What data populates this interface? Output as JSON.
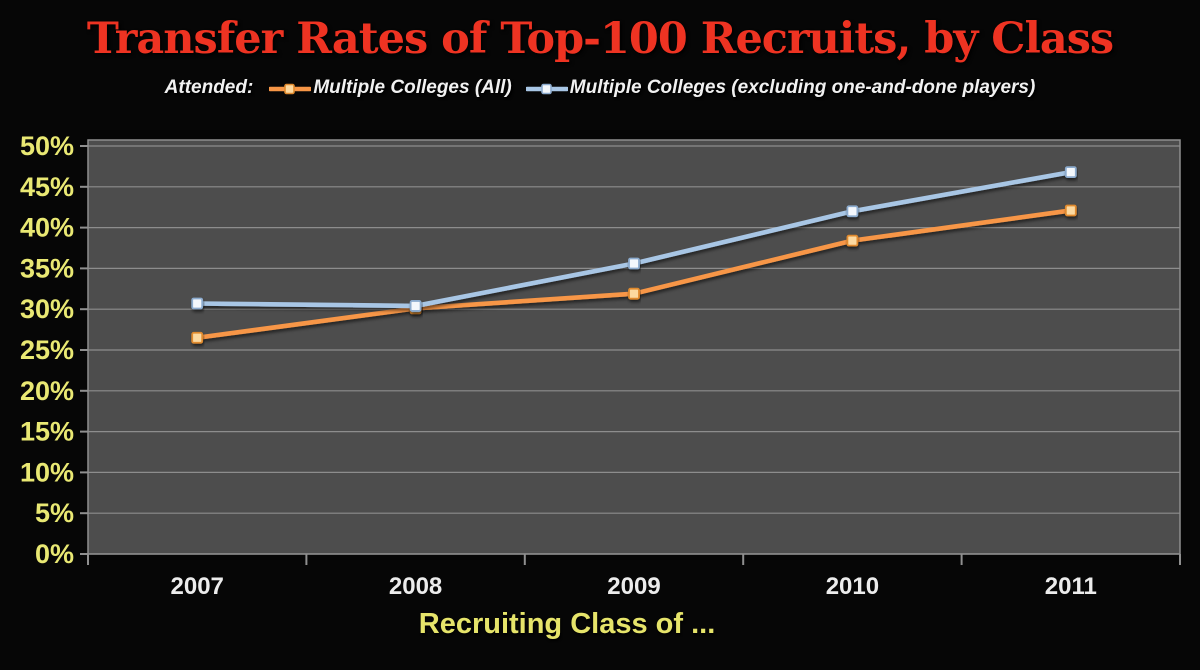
{
  "chart_data": {
    "type": "line",
    "title": "Transfer Rates of Top-100 Recruits, by Class",
    "legend_intro": "Attended:",
    "xlabel": "Recruiting Class of ...",
    "categories": [
      "2007",
      "2008",
      "2009",
      "2010",
      "2011"
    ],
    "series": [
      {
        "name": "Multiple Colleges (All)",
        "color": "#f79646",
        "marker_fill": "#fcd9a0",
        "marker_stroke": "#e08a2e",
        "values": [
          26.5,
          30.1,
          31.9,
          38.4,
          42.1
        ]
      },
      {
        "name": "Multiple Colleges (excluding one-and-done players)",
        "color": "#a8c6e5",
        "marker_fill": "#f3f7fc",
        "marker_stroke": "#8cabce",
        "values": [
          30.7,
          30.4,
          35.6,
          42.0,
          46.8
        ]
      }
    ],
    "ylim": [
      0,
      50
    ],
    "ytick_step": 5,
    "yticks": [
      "0%",
      "5%",
      "10%",
      "15%",
      "20%",
      "25%",
      "30%",
      "35%",
      "40%",
      "45%",
      "50%"
    ],
    "grid": true,
    "legend_position": "top",
    "colors": {
      "page_bg": "#060606",
      "plot_bg": "#4d4d4d",
      "grid": "#999999",
      "axis": "#8f8f8f",
      "title": "#ee3322",
      "ytick": "#e9e873",
      "xtick": "#ececec",
      "xlabel": "#e6e46a",
      "legend_text": "#f1f1f1"
    }
  }
}
